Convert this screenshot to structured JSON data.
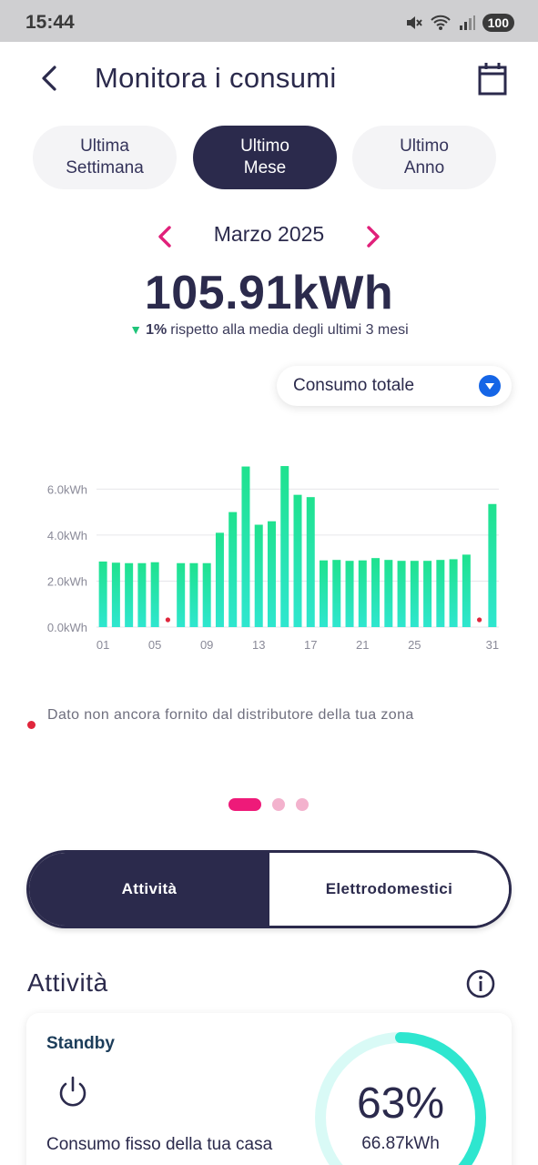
{
  "status_bar": {
    "time": "15:44",
    "battery": "100",
    "icons": [
      "mute-icon",
      "wifi-6e-icon",
      "signal-icon"
    ]
  },
  "header": {
    "title": "Monitora i consumi",
    "back_icon": "chevron-left-icon",
    "calendar_icon": "calendar-icon"
  },
  "period_tabs": [
    {
      "label": "Ultima\nSettimana",
      "active": false
    },
    {
      "label": "Ultimo\nMese",
      "active": true
    },
    {
      "label": "Ultimo\nAnno",
      "active": false
    }
  ],
  "month_nav": {
    "label": "Marzo 2025",
    "accent_color": "#e0207a"
  },
  "summary": {
    "total": "105.91kWh",
    "change_pct": "1%",
    "change_text": "rispetto alla media degli ultimi 3 mesi",
    "change_color": "#1fc47a"
  },
  "consumption_select": {
    "value": "Consumo totale"
  },
  "chart_data": {
    "type": "bar",
    "categories": [
      "01",
      "02",
      "03",
      "04",
      "05",
      "06",
      "07",
      "08",
      "09",
      "10",
      "11",
      "12",
      "13",
      "14",
      "15",
      "16",
      "17",
      "18",
      "19",
      "20",
      "21",
      "22",
      "23",
      "24",
      "25",
      "26",
      "27",
      "28",
      "29",
      "30",
      "31"
    ],
    "values": [
      2.85,
      2.8,
      2.78,
      2.78,
      2.82,
      null,
      2.78,
      2.78,
      2.78,
      4.1,
      5.0,
      6.98,
      4.45,
      4.6,
      7.0,
      5.75,
      5.65,
      2.9,
      2.92,
      2.88,
      2.9,
      3.0,
      2.92,
      2.88,
      2.88,
      2.88,
      2.92,
      2.95,
      3.15,
      null,
      5.35
    ],
    "missing_days": [
      "06",
      "30"
    ],
    "y_ticks": [
      "0.0kWh",
      "2.0kWh",
      "4.0kWh",
      "6.0kWh"
    ],
    "y_tick_values": [
      0,
      2,
      4,
      6
    ],
    "x_ticks": [
      "01",
      "05",
      "09",
      "13",
      "17",
      "21",
      "25",
      "31"
    ],
    "ylim": [
      0,
      7.2
    ],
    "bar_color_top": "#1fe28e",
    "bar_color_bottom": "#2fe6cf",
    "missing_color": "#e0263c",
    "grid": true
  },
  "legend_note": {
    "text": "Dato non ancora fornito dal distributore della tua zona"
  },
  "pager": {
    "count": 3,
    "active_index": 0
  },
  "segment": {
    "left_label": "Attività",
    "right_label": "Elettrodomestici"
  },
  "section": {
    "title": "Attività",
    "info_icon": "info-icon"
  },
  "activity_card": {
    "title": "Standby",
    "icon": "power-icon",
    "description": "Consumo fisso della tua casa",
    "percent": "63%",
    "percent_value": 0.63,
    "kwh": "66.87kWh",
    "ring_color": "#2ee6cf",
    "ring_track_color": "#d9faf6"
  }
}
